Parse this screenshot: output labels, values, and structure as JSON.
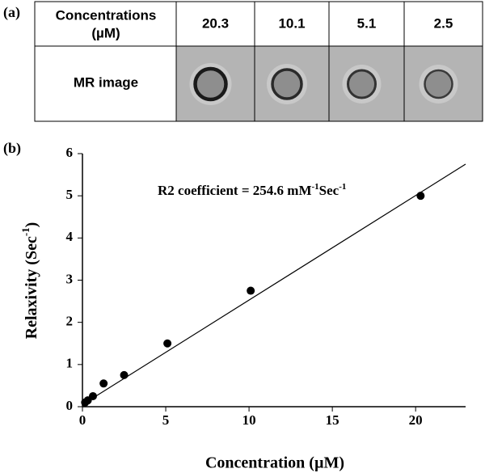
{
  "panel_a": {
    "label": "(a)",
    "table": {
      "header_label": [
        "Concentrations",
        "(µM)"
      ],
      "columns": [
        "20.3",
        "10.1",
        "5.1",
        "2.5"
      ],
      "row_label": "MR image"
    }
  },
  "panel_b": {
    "label": "(b)"
  },
  "chart_data": {
    "type": "scatter",
    "annotation": [
      "R2 coefficient =  254.6 mM",
      "-1",
      "Sec",
      "-1"
    ],
    "x_label": "Concentration (µM)",
    "y_label": [
      "Relaxivity (Sec",
      "-1",
      ")"
    ],
    "xlim": [
      0,
      23
    ],
    "xticks": [
      0,
      5,
      10,
      15,
      20
    ],
    "ylim": [
      0,
      6
    ],
    "yticks": [
      0,
      1,
      2,
      3,
      4,
      5,
      6
    ],
    "series": [
      {
        "color": "#000000",
        "x": [
          0.16,
          0.32,
          0.63,
          1.27,
          2.5,
          5.1,
          10.1,
          20.3
        ],
        "values": [
          0.1,
          0.15,
          0.25,
          0.55,
          0.75,
          1.5,
          2.75,
          5.0
        ]
      },
      {
        "type": "line",
        "color": "#000000",
        "x": [
          0,
          23
        ],
        "values": [
          0.05,
          5.75
        ]
      }
    ]
  }
}
